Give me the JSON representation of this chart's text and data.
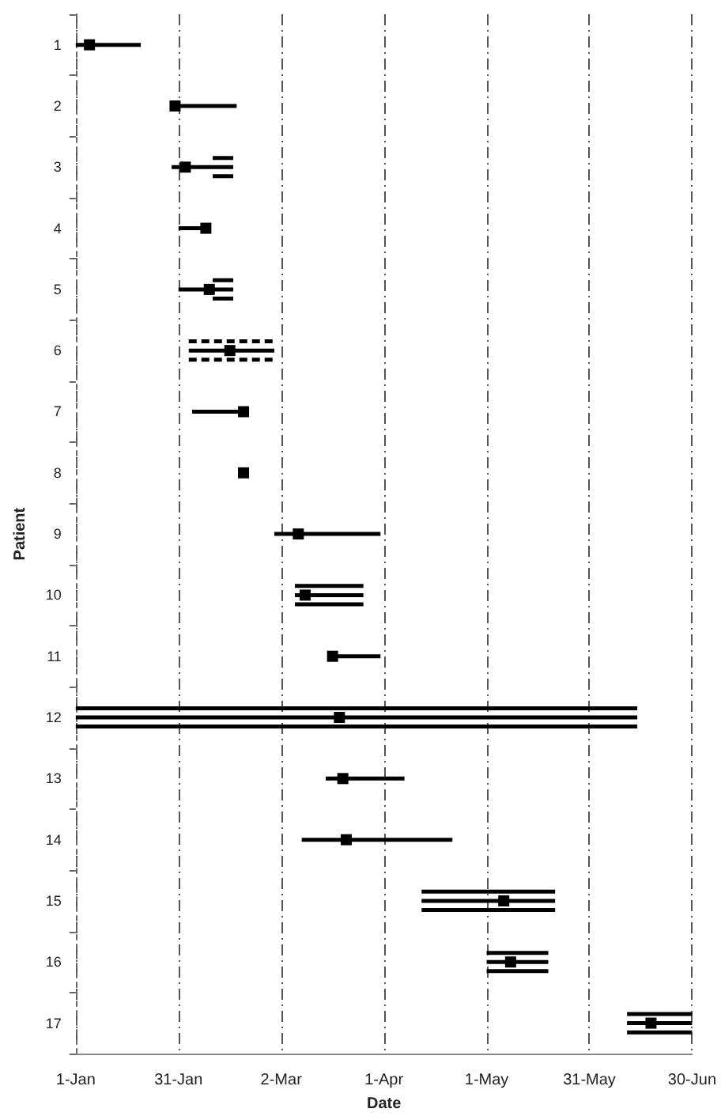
{
  "chart_data": {
    "type": "scatter",
    "xlabel": "Date",
    "ylabel": "Patient",
    "xlim": [
      "--01-01",
      "--06-30"
    ],
    "xticks": [
      {
        "value": "--01-01",
        "label": "1-Jan"
      },
      {
        "value": "--01-31",
        "label": "31-Jan"
      },
      {
        "value": "--03-02",
        "label": "2-Mar"
      },
      {
        "value": "--04-01",
        "label": "1-Apr"
      },
      {
        "value": "--05-01",
        "label": "1-May"
      },
      {
        "value": "--05-31",
        "label": "31-May"
      },
      {
        "value": "--06-30",
        "label": "30-Jun"
      }
    ],
    "ylim": [
      17.5,
      0.5
    ],
    "yticks": [
      {
        "value": 0.5,
        "label": null
      },
      1,
      {
        "value": 1.5,
        "label": null
      },
      2,
      {
        "value": 2.5,
        "label": null
      },
      3,
      {
        "value": 3.5,
        "label": null
      },
      4,
      {
        "value": 4.5,
        "label": null
      },
      5,
      {
        "value": 5.5,
        "label": null
      },
      6,
      {
        "value": 6.5,
        "label": null
      },
      7,
      {
        "value": 7.5,
        "label": null
      },
      8,
      {
        "value": 8.5,
        "label": null
      },
      9,
      {
        "value": 9.5,
        "label": null
      },
      10,
      {
        "value": 10.5,
        "label": null
      },
      11,
      {
        "value": 11.5,
        "label": null
      },
      12,
      {
        "value": 12.5,
        "label": null
      },
      13,
      {
        "value": 13.5,
        "label": null
      },
      14,
      {
        "value": 14.5,
        "label": null
      },
      15,
      {
        "value": 15.5,
        "label": null
      },
      16,
      {
        "value": 16.5,
        "label": null
      },
      17,
      {
        "value": 17.5,
        "label": null
      }
    ],
    "grid": "x",
    "series": [
      {
        "type": "line",
        "color": "#000000",
        "x": [
          "--02-10",
          "--02-16"
        ],
        "values": [
          2.85,
          2.85
        ]
      },
      {
        "type": "line",
        "color": "#000000",
        "x": [
          "--02-10",
          "--02-16"
        ],
        "values": [
          3.15,
          3.15
        ]
      },
      {
        "type": "line",
        "color": "#000000",
        "x": [
          "--02-10",
          "--02-16"
        ],
        "values": [
          4.85,
          4.85
        ]
      },
      {
        "type": "line",
        "color": "#000000",
        "x": [
          "--02-10",
          "--02-16"
        ],
        "values": [
          5.15,
          5.15
        ]
      },
      {
        "type": "line",
        "color": "#000000",
        "line_style": "dashed",
        "x": [
          "--02-03",
          "--02-28"
        ],
        "values": [
          5.85,
          5.85
        ]
      },
      {
        "type": "line",
        "color": "#000000",
        "line_style": "dashed",
        "x": [
          "--02-03",
          "--02-28"
        ],
        "values": [
          6.15,
          6.15
        ]
      },
      {
        "type": "line",
        "color": "#000000",
        "x": [
          "--03-06",
          "--03-26"
        ],
        "values": [
          9.85,
          9.85
        ]
      },
      {
        "type": "line",
        "color": "#000000",
        "x": [
          "--03-06",
          "--03-26"
        ],
        "values": [
          10.15,
          10.15
        ]
      },
      {
        "type": "line",
        "color": "#000000",
        "x": [
          "--01-01",
          "--06-14"
        ],
        "values": [
          11.85,
          11.85
        ]
      },
      {
        "type": "line",
        "color": "#000000",
        "x": [
          "--01-01",
          "--06-14"
        ],
        "values": [
          12.15,
          12.15
        ]
      },
      {
        "type": "line",
        "color": "#000000",
        "x": [
          "--04-12",
          "--05-21"
        ],
        "values": [
          14.85,
          14.85
        ]
      },
      {
        "type": "line",
        "color": "#000000",
        "x": [
          "--04-12",
          "--05-21"
        ],
        "values": [
          15.15,
          15.15
        ]
      },
      {
        "type": "line",
        "color": "#000000",
        "x": [
          "--05-01",
          "--05-19"
        ],
        "values": [
          15.85,
          15.85
        ]
      },
      {
        "type": "line",
        "color": "#000000",
        "x": [
          "--05-01",
          "--05-19"
        ],
        "values": [
          16.15,
          16.15
        ]
      },
      {
        "type": "line",
        "color": "#000000",
        "x": [
          "--06-11",
          "--06-30"
        ],
        "values": [
          16.85,
          16.85
        ]
      },
      {
        "type": "line",
        "color": "#000000",
        "x": [
          "--06-11",
          "--06-30"
        ],
        "values": [
          17.15,
          17.15
        ]
      },
      {
        "type": "line",
        "color": "#000000",
        "x": [
          "--01-01",
          "--01-20"
        ],
        "values": [
          1,
          1
        ]
      },
      {
        "type": "line",
        "color": "#000000",
        "x": [
          "--01-30",
          "--02-17"
        ],
        "values": [
          2,
          2
        ]
      },
      {
        "type": "line",
        "color": "#000000",
        "x": [
          "--01-29",
          "--02-16"
        ],
        "values": [
          3,
          3
        ]
      },
      {
        "type": "line",
        "color": "#000000",
        "x": [
          "--01-31",
          "--02-08"
        ],
        "values": [
          4,
          4
        ]
      },
      {
        "type": "line",
        "color": "#000000",
        "x": [
          "--01-31",
          "--02-16"
        ],
        "values": [
          5,
          5
        ]
      },
      {
        "type": "line",
        "color": "#000000",
        "x": [
          "--02-03",
          "--02-28"
        ],
        "values": [
          6,
          6
        ]
      },
      {
        "type": "line",
        "color": "#000000",
        "x": [
          "--02-04",
          "--02-19"
        ],
        "values": [
          7,
          7
        ]
      },
      {
        "type": "line",
        "color": "#000000",
        "x": [
          "--02-28",
          "--03-31"
        ],
        "values": [
          9,
          9
        ]
      },
      {
        "type": "line",
        "color": "#000000",
        "x": [
          "--03-06",
          "--03-26"
        ],
        "values": [
          10,
          10
        ]
      },
      {
        "type": "line",
        "color": "#000000",
        "x": [
          "--03-17",
          "--03-31"
        ],
        "values": [
          11,
          11
        ]
      },
      {
        "type": "line",
        "color": "#000000",
        "x": [
          "--01-01",
          "--06-14"
        ],
        "values": [
          12,
          12
        ]
      },
      {
        "type": "line",
        "color": "#000000",
        "x": [
          "--03-15",
          "--04-07"
        ],
        "values": [
          13,
          13
        ]
      },
      {
        "type": "line",
        "color": "#000000",
        "x": [
          "--03-08",
          "--04-21"
        ],
        "values": [
          14,
          14
        ]
      },
      {
        "type": "line",
        "color": "#000000",
        "x": [
          "--04-12",
          "--05-21"
        ],
        "values": [
          15,
          15
        ]
      },
      {
        "type": "line",
        "color": "#000000",
        "x": [
          "--05-01",
          "--05-19"
        ],
        "values": [
          16,
          16
        ]
      },
      {
        "type": "line",
        "color": "#000000",
        "x": [
          "--06-11",
          "--06-30"
        ],
        "values": [
          17,
          17
        ]
      },
      {
        "color": "#000000",
        "marker": "square",
        "x": [
          "--01-05",
          "--01-30",
          "--02-02",
          "--02-08",
          "--02-09",
          "--02-15",
          "--02-19",
          "--02-19",
          "--03-07",
          "--03-09",
          "--03-17",
          "--03-19",
          "--03-20",
          "--03-21",
          "--05-06",
          "--05-08",
          "--06-18"
        ],
        "values": [
          1,
          2,
          3,
          4,
          5,
          6,
          7,
          8,
          9,
          10,
          11,
          12,
          13,
          14,
          15,
          16,
          17
        ]
      }
    ]
  }
}
